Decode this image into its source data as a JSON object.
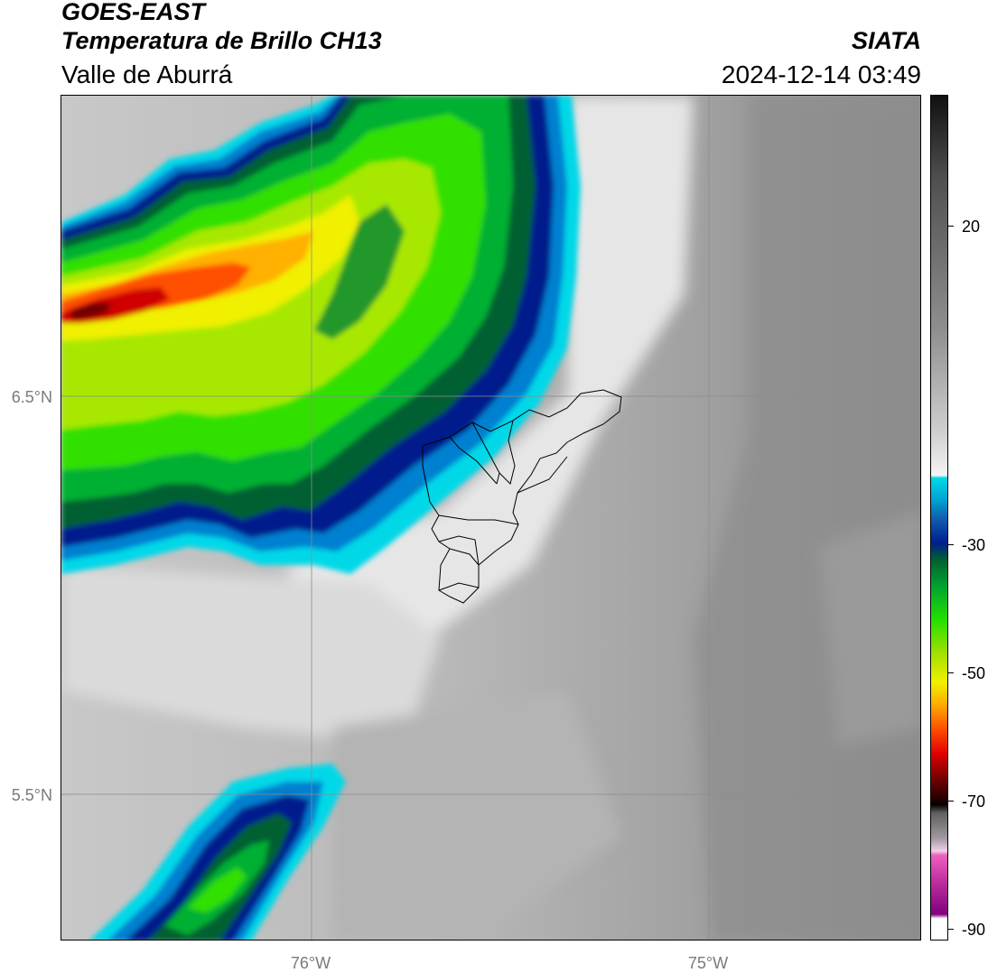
{
  "header": {
    "satellite": "GOES-EAST",
    "product": "Temperatura de Brillo CH13",
    "region": "Valle de Aburrá",
    "brand": "SIATA",
    "timestamp": "2024-12-14 03:49"
  },
  "axes": {
    "lat_labels": [
      "6.5°N",
      "5.5°N"
    ],
    "lon_labels": [
      "76°W",
      "75°W"
    ]
  },
  "colorbar": {
    "tick_labels": [
      "20",
      "-30",
      "-50",
      "-70",
      "-90"
    ],
    "palette": [
      "#101010",
      "#909090",
      "#f4f4f4",
      "#00d8e8",
      "#001e8c",
      "#00a030",
      "#f0f000",
      "#ff5000",
      "#700000",
      "#000000",
      "#f060c0",
      "#800080",
      "#ffffff"
    ]
  },
  "colors": {
    "coldest_core": "#c00000",
    "deep_convection": "#ffa000",
    "moderate_cloud": "#00c020",
    "cloud_edge": "#003ca0",
    "cyan_fringe": "#00d8e8",
    "clear_sky_gray": "#a8a8a8",
    "gridline": "#8c8c8c",
    "boundary_lines": "#000000"
  }
}
